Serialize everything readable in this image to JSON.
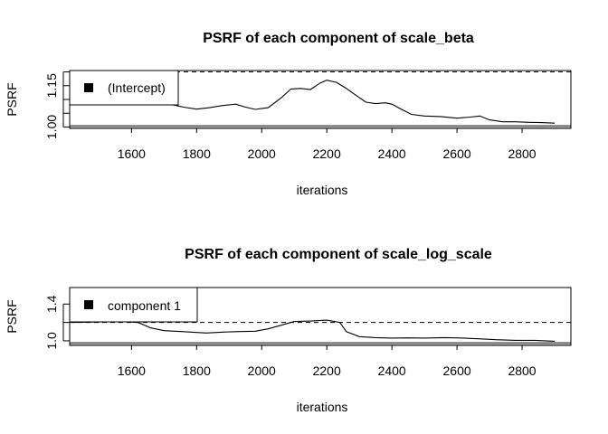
{
  "chart_data": [
    {
      "type": "line",
      "title": "PSRF of each component of scale_beta",
      "xlabel": "iterations",
      "ylabel": "PSRF",
      "xlim": [
        1410,
        2950
      ],
      "ylim": [
        0.995,
        1.205
      ],
      "x_ticks": [
        "1600",
        "1800",
        "2000",
        "2200",
        "2400",
        "2600",
        "2800"
      ],
      "x_tick_values": [
        1600,
        1800,
        2000,
        2200,
        2400,
        2600,
        2800
      ],
      "y_ticks": [
        "1.00",
        "1.15"
      ],
      "y_tick_values": [
        1.0,
        1.15
      ],
      "y_minor_ticks": [
        1.05,
        1.1,
        1.2
      ],
      "reference_line": 1.2,
      "legend_position": "top-left",
      "series": [
        {
          "name": "(Intercept)",
          "color": "#000000",
          "x": [
            1420,
            1500,
            1560,
            1620,
            1680,
            1730,
            1760,
            1800,
            1840,
            1880,
            1920,
            1950,
            1980,
            2020,
            2060,
            2090,
            2120,
            2150,
            2180,
            2200,
            2230,
            2260,
            2290,
            2320,
            2350,
            2380,
            2400,
            2430,
            2460,
            2500,
            2550,
            2600,
            2640,
            2670,
            2700,
            2740,
            2780,
            2820,
            2860,
            2900
          ],
          "y": [
            1.09,
            1.095,
            1.09,
            1.085,
            1.082,
            1.08,
            1.072,
            1.065,
            1.07,
            1.078,
            1.083,
            1.072,
            1.064,
            1.07,
            1.106,
            1.138,
            1.14,
            1.136,
            1.16,
            1.17,
            1.162,
            1.14,
            1.115,
            1.09,
            1.085,
            1.088,
            1.083,
            1.064,
            1.046,
            1.04,
            1.038,
            1.032,
            1.036,
            1.04,
            1.026,
            1.019,
            1.019,
            1.017,
            1.016,
            1.014
          ]
        }
      ]
    },
    {
      "type": "line",
      "title": "PSRF of each component of scale_log_scale",
      "xlabel": "iterations",
      "ylabel": "PSRF",
      "xlim": [
        1410,
        2950
      ],
      "ylim": [
        0.95,
        1.58
      ],
      "x_ticks": [
        "1600",
        "1800",
        "2000",
        "2200",
        "2400",
        "2600",
        "2800"
      ],
      "x_tick_values": [
        1600,
        1800,
        2000,
        2200,
        2400,
        2600,
        2800
      ],
      "y_ticks": [
        "1.0",
        "1.4"
      ],
      "y_tick_values": [
        1.0,
        1.4
      ],
      "y_minor_ticks": [
        1.2
      ],
      "reference_line": 1.2,
      "legend_position": "top-left",
      "series": [
        {
          "name": "component 1",
          "color": "#000000",
          "x": [
            1420,
            1500,
            1560,
            1620,
            1660,
            1700,
            1760,
            1830,
            1880,
            1920,
            1980,
            2020,
            2060,
            2100,
            2150,
            2200,
            2240,
            2260,
            2300,
            2350,
            2400,
            2450,
            2500,
            2560,
            2620,
            2680,
            2720,
            2780,
            2840,
            2900
          ],
          "y": [
            1.2,
            1.205,
            1.21,
            1.2,
            1.14,
            1.11,
            1.1,
            1.085,
            1.095,
            1.1,
            1.105,
            1.13,
            1.17,
            1.21,
            1.215,
            1.225,
            1.2,
            1.1,
            1.045,
            1.035,
            1.03,
            1.032,
            1.03,
            1.035,
            1.03,
            1.02,
            1.012,
            1.005,
            1.005,
            0.995
          ]
        }
      ]
    }
  ]
}
